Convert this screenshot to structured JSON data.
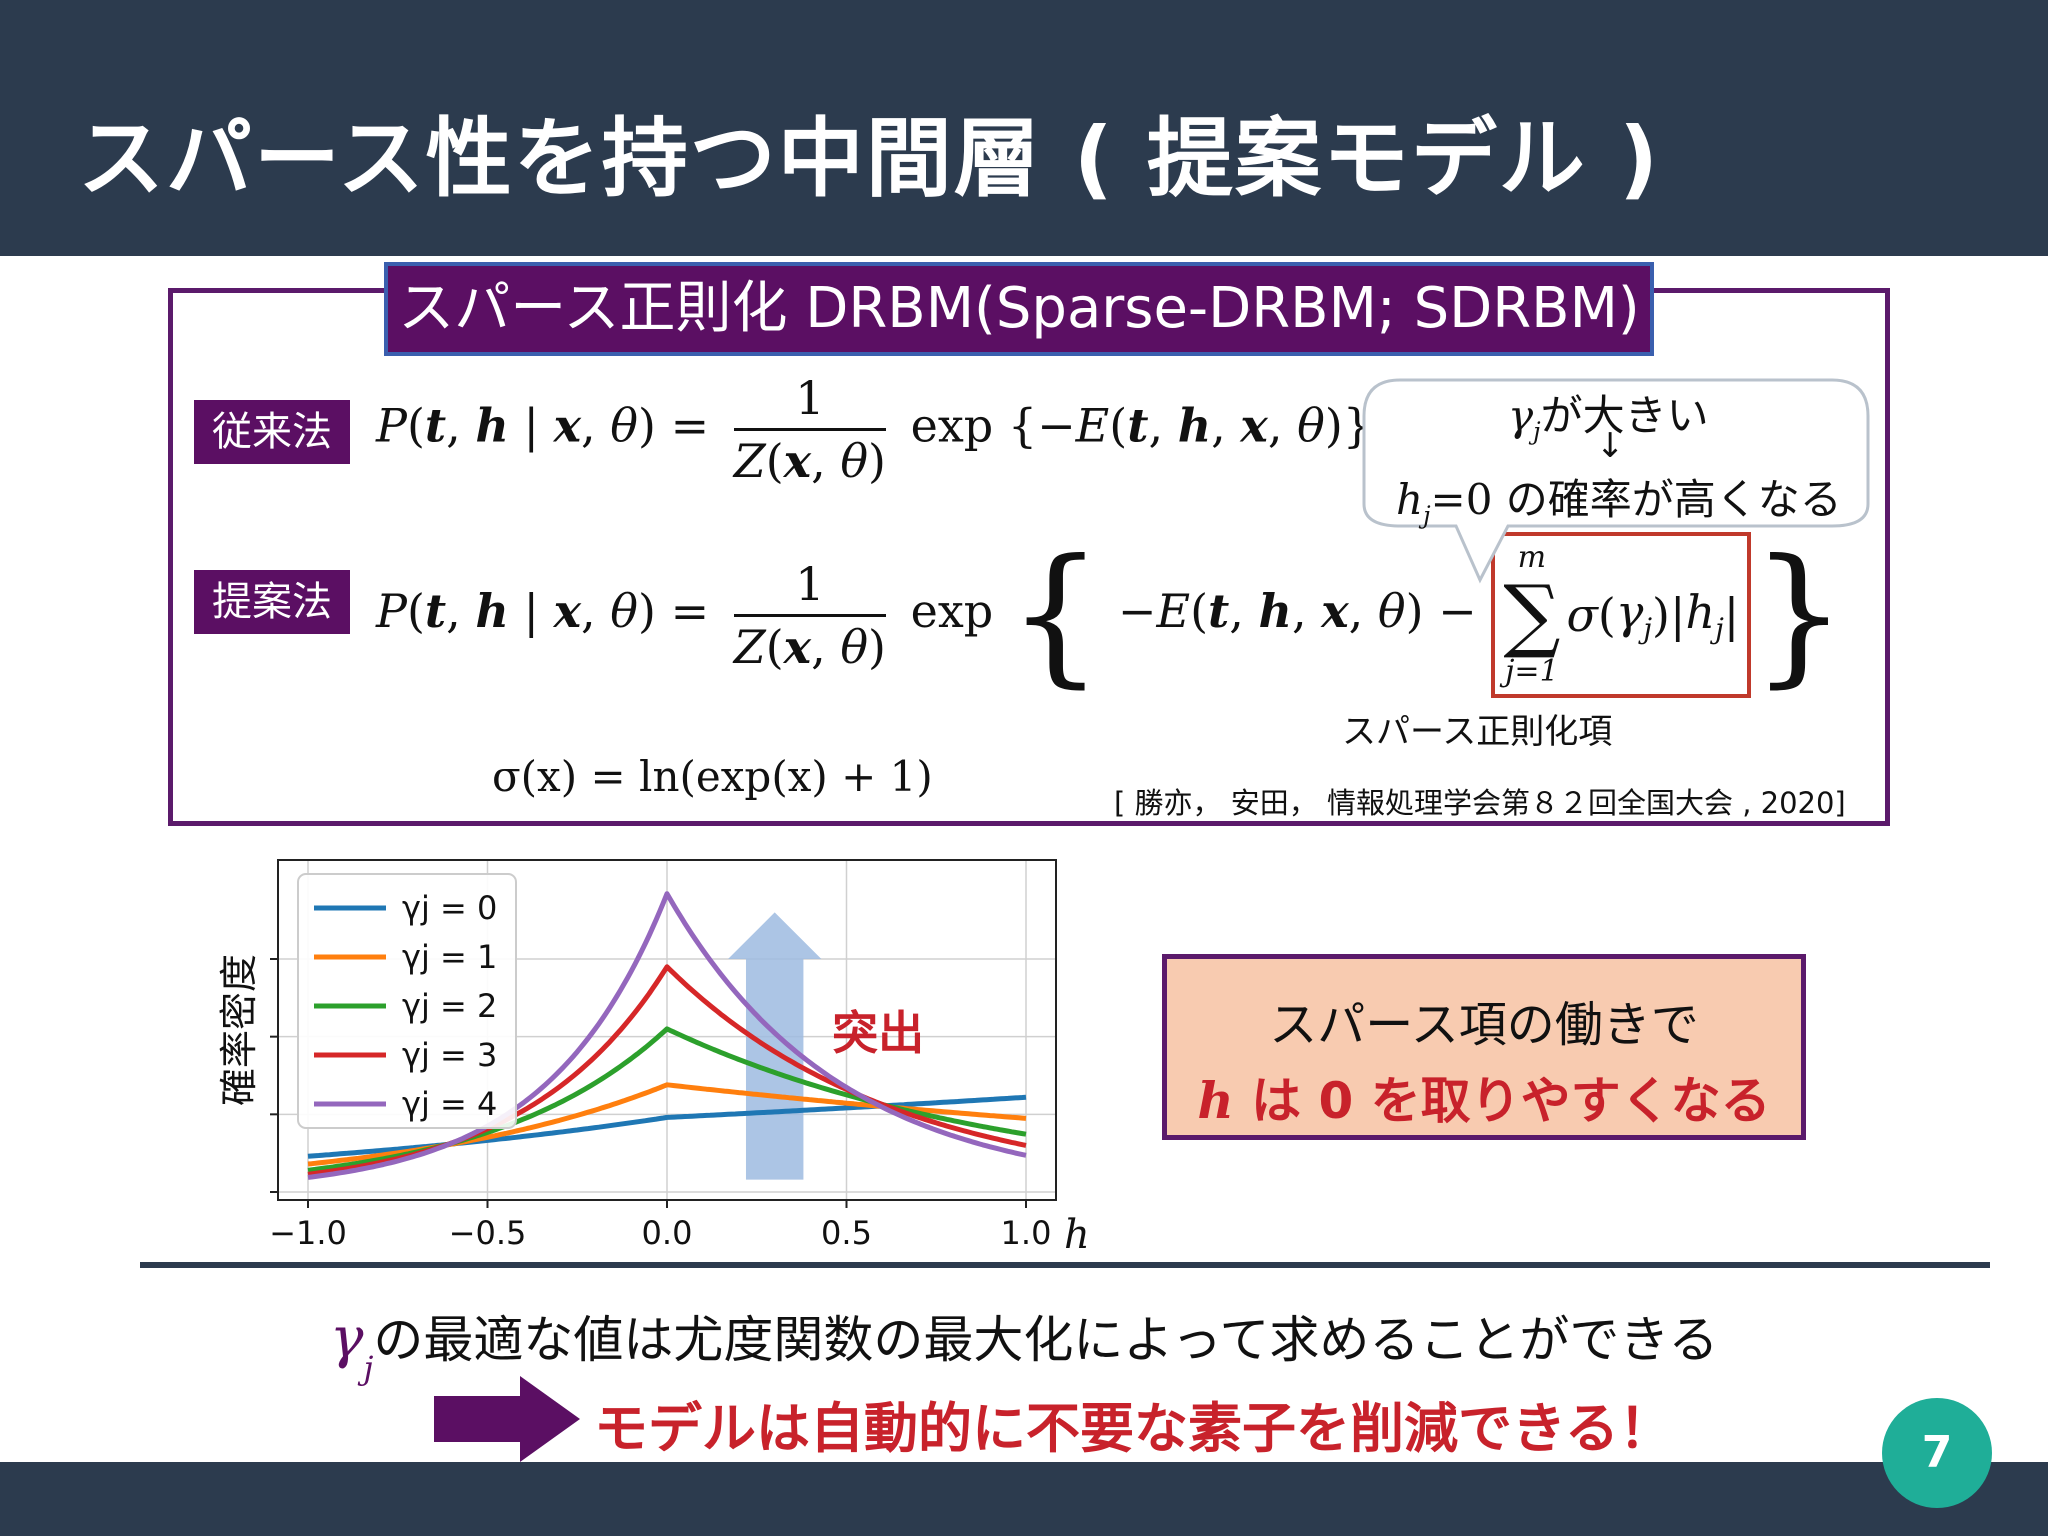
{
  "slide": {
    "title": "スパース性を持つ中間層 ( 提案モデル )",
    "page_number": "7"
  },
  "model_box": {
    "title": "スパース正則化 DRBM(Sparse-DRBM; SDRBM)",
    "label_conventional": "従来法",
    "label_proposed": "提案法",
    "sparse_term_label": "スパース正則化項",
    "sigma_definition": "σ(x) = ln(exp(x) + 1)",
    "citation": "[ 勝亦， 安田， 情報処理学会第８２回全国大会 , 2020]"
  },
  "bubble": {
    "line1_suffix": "が大きい",
    "arrow": "↓",
    "line2_suffix": "の確率が高くなる"
  },
  "note_box": {
    "line1": "スパース項の働きで",
    "line2_var": "h",
    "line2_rest": " は 0 を取りやすくなる"
  },
  "bottom": {
    "line1_suffix": "の最適な値は尤度関数の最大化によって求めることができる",
    "line2": "モデルは自動的に不要な素子を削減できる！"
  },
  "chart_data": {
    "type": "line",
    "ylabel": "確率密度",
    "xlabel": "h",
    "xlim": [
      -1.0,
      1.0
    ],
    "xticks": [
      "−1.0",
      "−0.5",
      "0.0",
      "0.5",
      "1.0"
    ],
    "annotation": "突出",
    "grid": true,
    "legend_position": "top-left",
    "x": [
      -1.0,
      0.0,
      1.0
    ],
    "series": [
      {
        "name": "γj = 0",
        "color": "#1f77b4",
        "values": [
          0.115,
          0.24,
          0.305
        ]
      },
      {
        "name": "γj = 1",
        "color": "#ff7f0e",
        "values": [
          0.09,
          0.345,
          0.237
        ]
      },
      {
        "name": "γj = 2",
        "color": "#2ca02c",
        "values": [
          0.07,
          0.525,
          0.186
        ]
      },
      {
        "name": "γj = 3",
        "color": "#d62728",
        "values": [
          0.057,
          0.725,
          0.15
        ]
      },
      {
        "name": "γj = 4",
        "color": "#9467bd",
        "values": [
          0.047,
          0.96,
          0.118
        ]
      }
    ]
  }
}
